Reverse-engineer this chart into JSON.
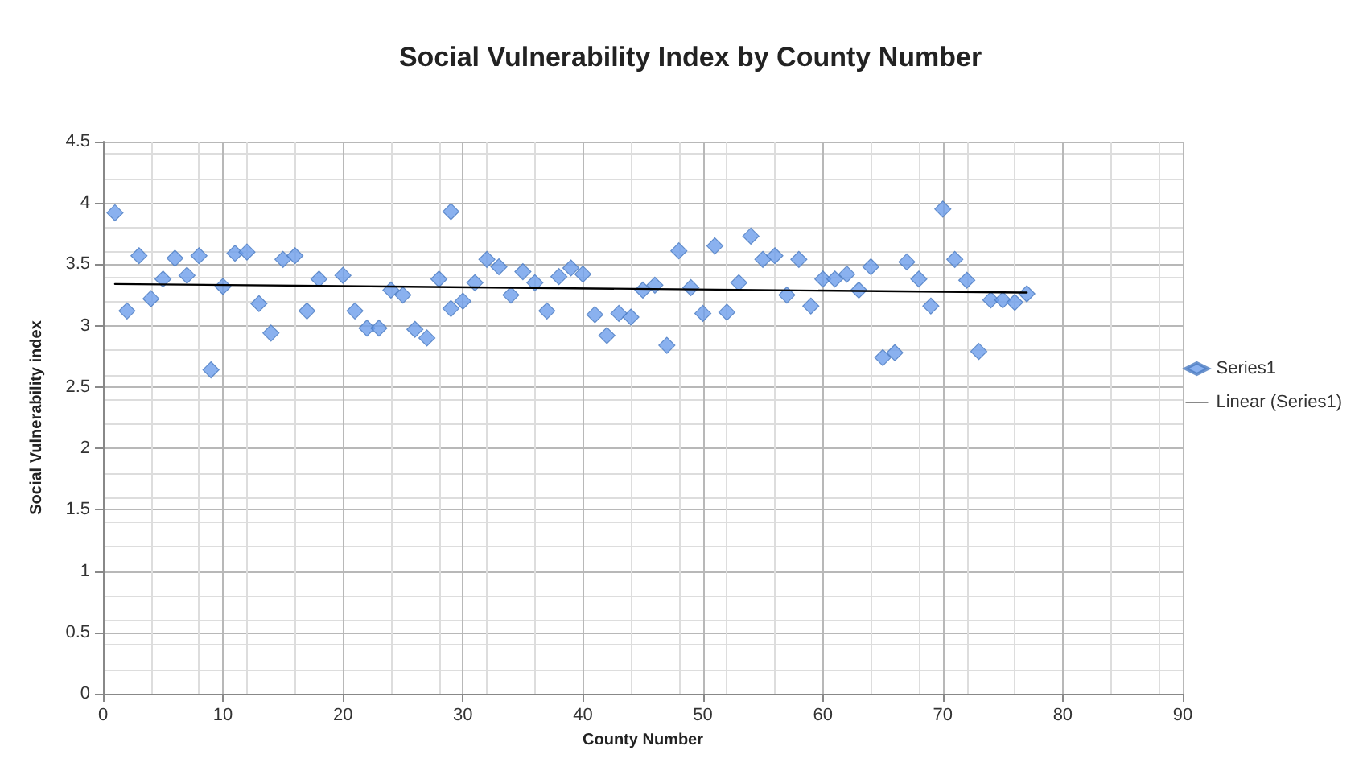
{
  "chart_data": {
    "type": "scatter",
    "title": "Social Vulnerability Index by County Number",
    "xlabel": "County Number",
    "ylabel": "Social Vulnerability index",
    "xlim": [
      0,
      90
    ],
    "xticks": [
      0,
      10,
      20,
      30,
      40,
      50,
      60,
      70,
      80,
      90
    ],
    "ylim": [
      0,
      4.5
    ],
    "yticks": [
      0,
      0.5,
      1,
      1.5,
      2,
      2.5,
      3,
      3.5,
      4,
      4.5
    ],
    "grid": true,
    "legend": "right",
    "marker": "diamond",
    "series": [
      {
        "name": "Series1",
        "color": "#6d9eeb",
        "x": [
          1,
          2,
          3,
          4,
          5,
          6,
          7,
          8,
          9,
          10,
          11,
          12,
          13,
          14,
          15,
          16,
          17,
          18,
          20,
          21,
          22,
          23,
          24,
          25,
          26,
          27,
          28,
          29,
          29,
          30,
          31,
          32,
          33,
          34,
          35,
          36,
          37,
          38,
          39,
          40,
          41,
          42,
          43,
          44,
          45,
          46,
          47,
          48,
          49,
          50,
          51,
          52,
          53,
          54,
          55,
          56,
          57,
          58,
          59,
          60,
          61,
          62,
          63,
          64,
          65,
          66,
          67,
          68,
          69,
          70,
          71,
          72,
          73,
          74,
          75,
          76,
          77
        ],
        "values": [
          3.92,
          3.12,
          3.57,
          3.22,
          3.38,
          3.55,
          3.41,
          3.57,
          2.64,
          3.32,
          3.59,
          3.6,
          3.18,
          2.94,
          3.54,
          3.57,
          3.12,
          3.38,
          3.41,
          3.12,
          2.98,
          2.98,
          3.29,
          3.25,
          2.97,
          2.9,
          3.38,
          3.93,
          3.14,
          3.2,
          3.35,
          3.54,
          3.48,
          3.25,
          3.44,
          3.35,
          3.12,
          3.4,
          3.47,
          3.42,
          3.09,
          2.92,
          3.1,
          3.07,
          3.29,
          3.33,
          2.84,
          3.61,
          3.31,
          3.1,
          3.65,
          3.11,
          3.35,
          3.73,
          3.54,
          3.57,
          3.25,
          3.54,
          3.16,
          3.38,
          3.38,
          3.42,
          3.29,
          3.48,
          2.74,
          2.78,
          3.52,
          3.38,
          3.16,
          3.95,
          3.54,
          3.37,
          2.79,
          3.21,
          3.21,
          3.19,
          3.26
        ]
      },
      {
        "name": "Linear (Series1)",
        "type": "line",
        "marker": "none",
        "color": "#000000",
        "x": [
          1,
          77
        ],
        "values": [
          3.34,
          3.27
        ]
      }
    ]
  }
}
